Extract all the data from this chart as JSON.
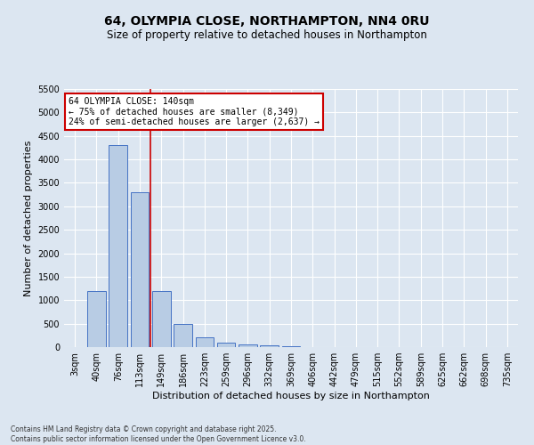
{
  "title": "64, OLYMPIA CLOSE, NORTHAMPTON, NN4 0RU",
  "subtitle": "Size of property relative to detached houses in Northampton",
  "xlabel": "Distribution of detached houses by size in Northampton",
  "ylabel": "Number of detached properties",
  "categories": [
    "3sqm",
    "40sqm",
    "76sqm",
    "113sqm",
    "149sqm",
    "186sqm",
    "223sqm",
    "259sqm",
    "296sqm",
    "332sqm",
    "369sqm",
    "406sqm",
    "442sqm",
    "479sqm",
    "515sqm",
    "552sqm",
    "589sqm",
    "625sqm",
    "662sqm",
    "698sqm",
    "735sqm"
  ],
  "values": [
    0,
    1200,
    4300,
    3300,
    1200,
    500,
    200,
    100,
    50,
    30,
    10,
    5,
    3,
    2,
    1,
    0,
    0,
    0,
    0,
    0,
    0
  ],
  "bar_color": "#b8cce4",
  "bar_edge_color": "#4472c4",
  "vline_position": 3.5,
  "vline_color": "#cc0000",
  "annotation_text": "64 OLYMPIA CLOSE: 140sqm\n← 75% of detached houses are smaller (8,349)\n24% of semi-detached houses are larger (2,637) →",
  "annotation_box_color": "#ffffff",
  "annotation_box_edge": "#cc0000",
  "ylim": [
    0,
    5500
  ],
  "yticks": [
    0,
    500,
    1000,
    1500,
    2000,
    2500,
    3000,
    3500,
    4000,
    4500,
    5000,
    5500
  ],
  "footnote": "Contains HM Land Registry data © Crown copyright and database right 2025.\nContains public sector information licensed under the Open Government Licence v3.0.",
  "bg_color": "#dce6f1",
  "plot_bg_color": "#dce6f1",
  "title_fontsize": 10,
  "subtitle_fontsize": 8.5,
  "tick_fontsize": 7,
  "axis_label_fontsize": 8
}
